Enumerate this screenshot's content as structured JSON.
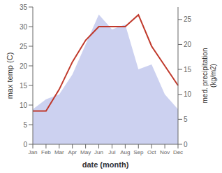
{
  "chart_data": {
    "type": "line",
    "categories": [
      "Jan",
      "Feb",
      "Mar",
      "Apr",
      "May",
      "Jun",
      "Jul",
      "Aug",
      "Sep",
      "Oct",
      "Nov",
      "Dec"
    ],
    "xlabel": "date (month)",
    "ylabel": "max temp (C)",
    "y2label": "med. precipitation\n(kg/m2)",
    "ylim": [
      0,
      35
    ],
    "yticks": [
      0,
      5,
      10,
      15,
      20,
      25,
      30,
      35
    ],
    "y2lim": [
      0,
      27.5
    ],
    "y2ticks": [
      0,
      5,
      10,
      15,
      20,
      25
    ],
    "grid": false,
    "series": [
      {
        "type": "area",
        "axis": "y2",
        "color": "#b0b8e8",
        "values": [
          7,
          9,
          10,
          14,
          20,
          26,
          23,
          24,
          15,
          16,
          10,
          7
        ]
      },
      {
        "type": "line",
        "color": "#c0392b",
        "values": [
          8.5,
          8.5,
          14,
          21,
          26.5,
          30,
          30,
          30,
          33,
          25,
          20,
          15
        ]
      }
    ]
  }
}
